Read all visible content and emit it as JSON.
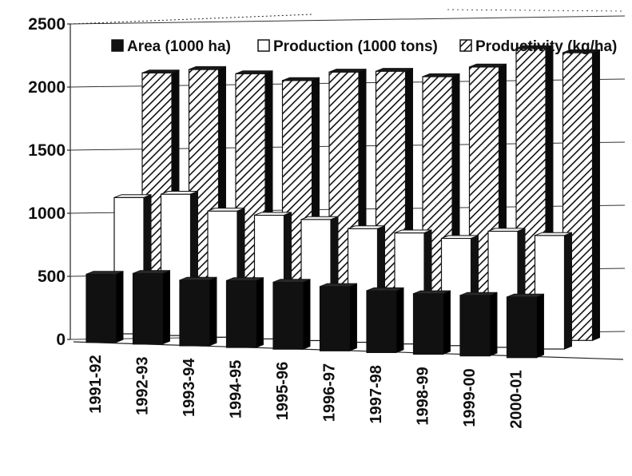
{
  "chart_data": {
    "type": "bar",
    "style": "3d-clustered-column",
    "categories": [
      "1991-92",
      "1992-93",
      "1993-94",
      "1994-95",
      "1995-96",
      "1996-97",
      "1997-98",
      "1998-99",
      "1999-00",
      "2000-01"
    ],
    "series": [
      {
        "name": "Area (1000 ha)",
        "values": [
          540,
          560,
          520,
          530,
          530,
          510,
          490,
          480,
          480,
          480
        ],
        "pattern": "solid",
        "color": "#111111"
      },
      {
        "name": "Production (1000 tons)",
        "values": [
          1080,
          1120,
          1000,
          980,
          960,
          900,
          880,
          850,
          920,
          900
        ],
        "pattern": "white",
        "color": "#ffffff"
      },
      {
        "name": "Productivity (kg/ha)",
        "values": [
          2000,
          2040,
          2020,
          1980,
          2060,
          2080,
          2050,
          2140,
          2300,
          2280
        ],
        "pattern": "hatched",
        "color": "#111111"
      }
    ],
    "ylim": [
      0,
      2500
    ],
    "yticks": [
      "0",
      "500",
      "1000",
      "1500",
      "2000",
      "2500"
    ],
    "grid": true,
    "legend_position": "top"
  }
}
